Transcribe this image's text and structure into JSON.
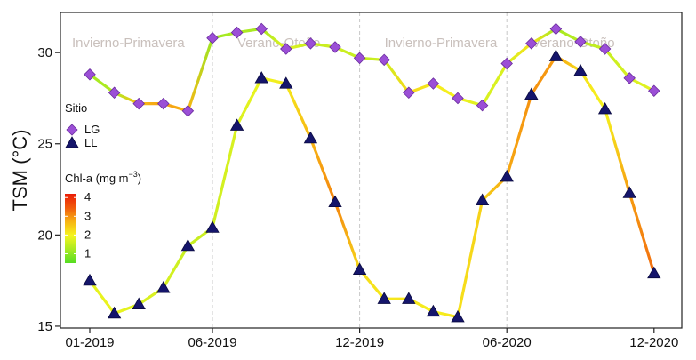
{
  "chart_data": {
    "type": "line",
    "ylabel": "TSM (°C)",
    "ylim": [
      14.9,
      32.2
    ],
    "yticks": [
      15,
      20,
      25,
      30
    ],
    "x_ticks": [
      {
        "label": "01-2019",
        "month": 0
      },
      {
        "label": "06-2019",
        "month": 5
      },
      {
        "label": "12-2019",
        "month": 11
      },
      {
        "label": "06-2020",
        "month": 17
      },
      {
        "label": "12-2020",
        "month": 23
      }
    ],
    "x_months": [
      "01-2019",
      "02-2019",
      "03-2019",
      "04-2019",
      "05-2019",
      "06-2019",
      "07-2019",
      "08-2019",
      "09-2019",
      "10-2019",
      "11-2019",
      "12-2019",
      "01-2020",
      "02-2020",
      "03-2020",
      "04-2020",
      "05-2020",
      "06-2020",
      "07-2020",
      "08-2020",
      "09-2020",
      "10-2020",
      "11-2020",
      "12-2020"
    ],
    "season_dividers": [
      "06-2019",
      "12-2019",
      "06-2020"
    ],
    "season_labels": [
      {
        "text": "Invierno-Primavera",
        "start": "01-2019"
      },
      {
        "text": "Verano-Otoño",
        "start": "06-2019"
      },
      {
        "text": "Invierno-Primavera",
        "start": "12-2019"
      },
      {
        "text": "Verano-Otoño",
        "start": "06-2020"
      }
    ],
    "series": [
      {
        "name": "LG",
        "marker": "diamond",
        "marker_color": "#9b4fd6",
        "values": [
          28.8,
          27.8,
          27.2,
          27.2,
          26.8,
          30.8,
          31.1,
          31.3,
          30.2,
          30.5,
          30.3,
          29.7,
          29.6,
          27.8,
          28.3,
          27.5,
          27.1,
          29.4,
          30.5,
          31.3,
          30.6,
          30.2,
          28.6,
          27.9
        ],
        "chla": [
          1.2,
          1.3,
          2.6,
          2.9,
          2.7,
          1.1,
          1.3,
          1.2,
          1.8,
          1.5,
          1.6,
          1.5,
          1.6,
          2.3,
          2.1,
          2.0,
          1.7,
          1.7,
          2.2,
          1.2,
          1.4,
          1.5,
          1.7,
          1.8
        ]
      },
      {
        "name": "LL",
        "marker": "triangle",
        "marker_color": "#15156b",
        "values": [
          17.5,
          15.7,
          16.2,
          17.1,
          19.4,
          20.4,
          26.0,
          28.6,
          28.3,
          25.3,
          21.8,
          18.1,
          16.5,
          16.5,
          15.8,
          15.5,
          21.9,
          23.2,
          27.7,
          29.8,
          29.0,
          26.9,
          22.3,
          17.9
        ],
        "chla": [
          1.8,
          1.9,
          1.7,
          1.7,
          1.5,
          1.6,
          1.7,
          1.9,
          2.1,
          2.7,
          3.1,
          2.3,
          2.1,
          2.2,
          2.0,
          2.2,
          2.4,
          2.8,
          3.0,
          2.9,
          2.2,
          2.0,
          2.9,
          3.3
        ]
      }
    ],
    "legend": {
      "title": "Sitio",
      "entries": [
        "LG",
        "LL"
      ],
      "colorbar_title": "Chl-a (mg m",
      "colorbar_sup": "−3",
      "colorbar_close": ")",
      "colorbar_ticks": [
        1,
        2,
        3,
        4
      ],
      "colorbar_range": [
        0.5,
        4.2
      ],
      "colorbar_colors": [
        "#55dd22",
        "#aaea22",
        "#f5f51e",
        "#f7b313",
        "#f15a0c",
        "#ea1d06"
      ],
      "placement": "left"
    },
    "grid": false
  }
}
